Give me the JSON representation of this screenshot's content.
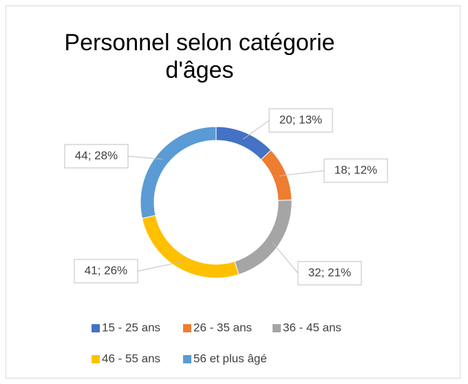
{
  "chart_data": {
    "type": "donut",
    "title": "Personnel selon catégorie d'âges",
    "categories": [
      "15 - 25 ans",
      "26 - 35 ans",
      "36 - 45 ans",
      "46 - 55 ans",
      "56 et plus âgé"
    ],
    "values": [
      20,
      18,
      32,
      41,
      44
    ],
    "value_labels": [
      "20; 13%",
      "18; 12%",
      "32; 21%",
      "41; 26%",
      "44; 28%"
    ],
    "colors": [
      "#4472c4",
      "#ed7d31",
      "#a5a5a5",
      "#ffc000",
      "#5b9bd5"
    ],
    "legend": "bottom"
  }
}
